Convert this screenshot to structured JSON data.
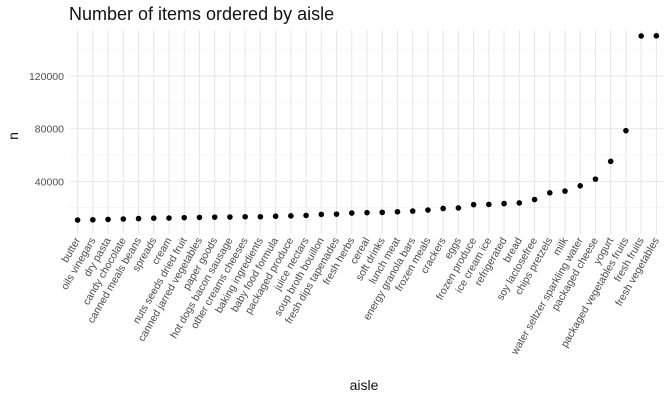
{
  "chart_data": {
    "type": "scatter",
    "title": "Number of items ordered by aisle",
    "xlabel": "aisle",
    "ylabel": "n",
    "y_ticks": [
      40000,
      80000,
      120000
    ],
    "y_tick_labels": [
      "40000",
      "80000",
      "120000"
    ],
    "ylim": [
      0,
      155000
    ],
    "grid": true,
    "point_color": "#000000",
    "categories": [
      "butter",
      "oils vinegars",
      "dry pasta",
      "candy chocolate",
      "canned meals beans",
      "spreads",
      "cream",
      "nuts seeds dried fruit",
      "canned jarred vegetables",
      "paper goods",
      "hot dogs bacon sausage",
      "other creams cheeses",
      "baking ingredients",
      "baby food formula",
      "packaged produce",
      "juice nectars",
      "soup broth bouillon",
      "fresh dips tapenades",
      "fresh herbs",
      "cereal",
      "soft drinks",
      "lunch meat",
      "energy granola bars",
      "frozen meals",
      "crackers",
      "eggs",
      "frozen produce",
      "ice cream ice",
      "refrigerated",
      "bread",
      "soy lactosefree",
      "chips pretzels",
      "milk",
      "water seltzer sparkling water",
      "packaged cheese",
      "yogurt",
      "packaged vegetables fruits",
      "fresh fruits",
      "fresh vegetables"
    ],
    "values": [
      10600,
      10800,
      11100,
      11400,
      11700,
      12000,
      12100,
      12400,
      12600,
      12800,
      12900,
      13100,
      13100,
      13500,
      13800,
      14100,
      14900,
      15100,
      15900,
      16200,
      16400,
      16900,
      17400,
      18200,
      19400,
      19800,
      22300,
      22500,
      23100,
      23600,
      26200,
      31300,
      32600,
      36600,
      41700,
      55200,
      78500,
      150500,
      150600
    ]
  }
}
